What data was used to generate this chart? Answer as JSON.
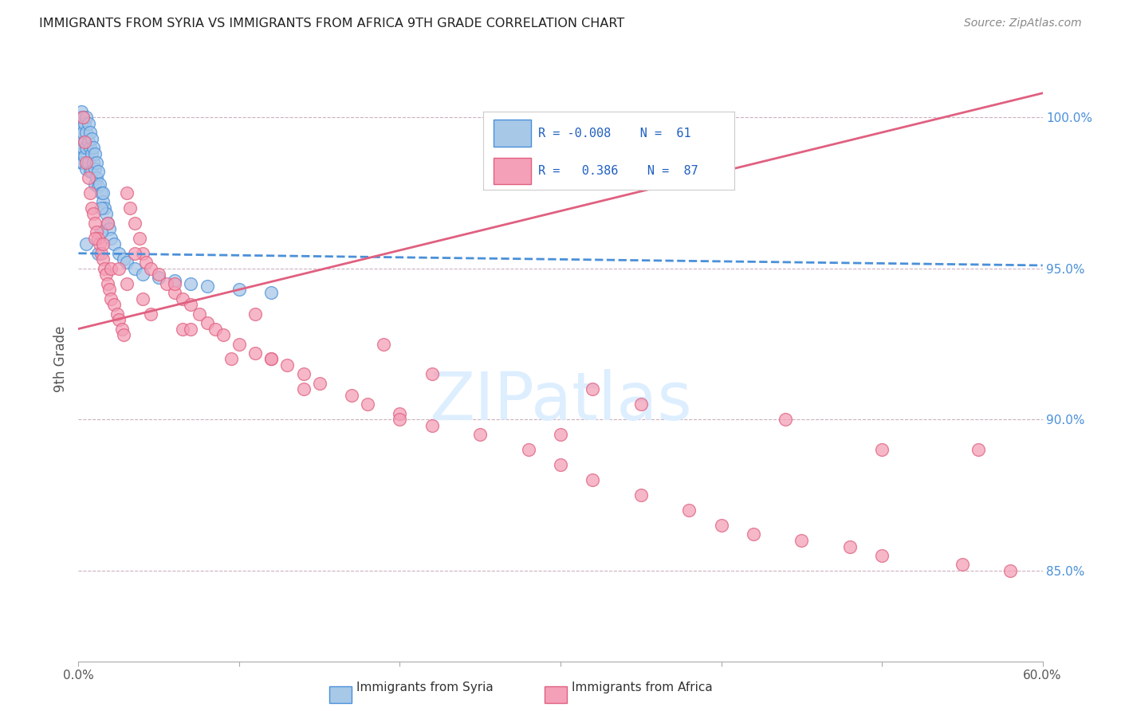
{
  "title": "IMMIGRANTS FROM SYRIA VS IMMIGRANTS FROM AFRICA 9TH GRADE CORRELATION CHART",
  "source": "Source: ZipAtlas.com",
  "ylabel": "9th Grade",
  "xlim": [
    0.0,
    60.0
  ],
  "ylim": [
    82.0,
    102.0
  ],
  "yticks": [
    85.0,
    90.0,
    95.0,
    100.0
  ],
  "ytick_labels": [
    "85.0%",
    "90.0%",
    "95.0%",
    "100.0%"
  ],
  "legend_R_syria": "-0.008",
  "legend_N_syria": "61",
  "legend_R_africa": "0.386",
  "legend_N_africa": "87",
  "color_syria": "#a8c8e8",
  "color_africa": "#f4a0b8",
  "line_syria_color": "#4a90d9",
  "line_africa_color": "#e06080",
  "watermark_color": "#ddeeff",
  "background_color": "#ffffff",
  "syria_x": [
    0.1,
    0.1,
    0.1,
    0.2,
    0.2,
    0.2,
    0.2,
    0.3,
    0.3,
    0.3,
    0.3,
    0.4,
    0.4,
    0.4,
    0.5,
    0.5,
    0.5,
    0.5,
    0.6,
    0.6,
    0.6,
    0.7,
    0.7,
    0.7,
    0.8,
    0.8,
    0.8,
    0.9,
    0.9,
    1.0,
    1.0,
    1.0,
    1.1,
    1.1,
    1.2,
    1.2,
    1.3,
    1.4,
    1.5,
    1.5,
    1.6,
    1.7,
    1.8,
    1.9,
    2.0,
    2.2,
    2.5,
    2.8,
    3.0,
    3.5,
    4.0,
    5.0,
    6.0,
    7.0,
    8.0,
    10.0,
    12.0,
    1.4,
    1.4,
    0.5,
    1.2
  ],
  "syria_y": [
    100.0,
    99.5,
    98.8,
    100.2,
    99.8,
    99.0,
    98.5,
    100.0,
    99.5,
    99.0,
    98.5,
    99.8,
    99.2,
    98.7,
    100.0,
    99.5,
    99.0,
    98.3,
    99.8,
    99.2,
    98.5,
    99.5,
    99.0,
    98.2,
    99.3,
    98.8,
    98.2,
    99.0,
    98.5,
    98.8,
    98.3,
    97.8,
    98.5,
    98.0,
    98.2,
    97.7,
    97.8,
    97.5,
    97.2,
    97.5,
    97.0,
    96.8,
    96.5,
    96.3,
    96.0,
    95.8,
    95.5,
    95.3,
    95.2,
    95.0,
    94.8,
    94.7,
    94.6,
    94.5,
    94.4,
    94.3,
    94.2,
    96.2,
    97.0,
    95.8,
    95.5
  ],
  "africa_x": [
    0.3,
    0.4,
    0.5,
    0.6,
    0.7,
    0.8,
    0.9,
    1.0,
    1.1,
    1.2,
    1.3,
    1.4,
    1.5,
    1.6,
    1.7,
    1.8,
    1.9,
    2.0,
    2.2,
    2.4,
    2.5,
    2.7,
    2.8,
    3.0,
    3.2,
    3.5,
    3.8,
    4.0,
    4.2,
    4.5,
    5.0,
    5.5,
    6.0,
    6.5,
    7.0,
    7.5,
    8.0,
    8.5,
    9.0,
    10.0,
    11.0,
    12.0,
    13.0,
    14.0,
    15.0,
    17.0,
    18.0,
    20.0,
    22.0,
    25.0,
    28.0,
    30.0,
    32.0,
    35.0,
    38.0,
    40.0,
    42.0,
    45.0,
    48.0,
    50.0,
    55.0,
    58.0,
    1.0,
    2.0,
    3.0,
    4.5,
    6.5,
    9.5,
    14.0,
    20.0,
    30.0,
    1.5,
    2.5,
    4.0,
    7.0,
    12.0,
    22.0,
    35.0,
    50.0,
    1.8,
    3.5,
    6.0,
    11.0,
    19.0,
    32.0,
    44.0,
    56.0
  ],
  "africa_y": [
    100.0,
    99.2,
    98.5,
    98.0,
    97.5,
    97.0,
    96.8,
    96.5,
    96.2,
    96.0,
    95.8,
    95.5,
    95.3,
    95.0,
    94.8,
    94.5,
    94.3,
    94.0,
    93.8,
    93.5,
    93.3,
    93.0,
    92.8,
    97.5,
    97.0,
    96.5,
    96.0,
    95.5,
    95.2,
    95.0,
    94.8,
    94.5,
    94.2,
    94.0,
    93.8,
    93.5,
    93.2,
    93.0,
    92.8,
    92.5,
    92.2,
    92.0,
    91.8,
    91.5,
    91.2,
    90.8,
    90.5,
    90.2,
    89.8,
    89.5,
    89.0,
    88.5,
    88.0,
    87.5,
    87.0,
    86.5,
    86.2,
    86.0,
    85.8,
    85.5,
    85.2,
    85.0,
    96.0,
    95.0,
    94.5,
    93.5,
    93.0,
    92.0,
    91.0,
    90.0,
    89.5,
    95.8,
    95.0,
    94.0,
    93.0,
    92.0,
    91.5,
    90.5,
    89.0,
    96.5,
    95.5,
    94.5,
    93.5,
    92.5,
    91.0,
    90.0,
    89.0
  ]
}
